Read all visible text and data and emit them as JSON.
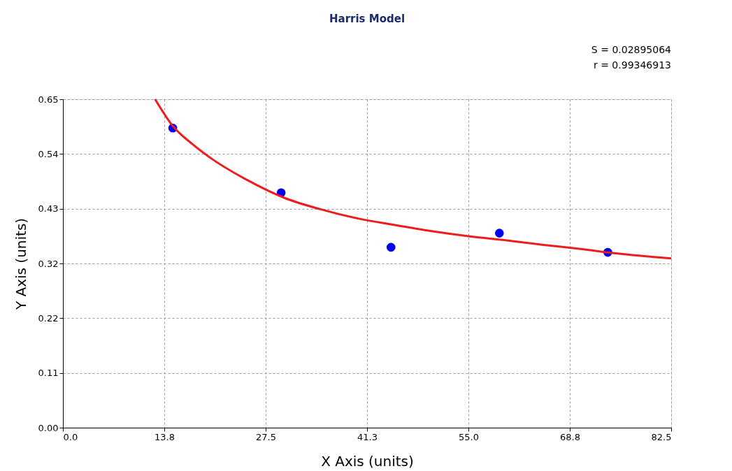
{
  "chart_data": {
    "type": "scatter",
    "title": "Harris Model",
    "xlabel": "X Axis (units)",
    "ylabel": "Y Axis (units)",
    "annotations": [
      "S = 0.02895064",
      "r = 0.99346913"
    ],
    "series": [
      {
        "color": "#0000ee",
        "marker": "circle",
        "x": [
          14.9,
          29.6,
          44.5,
          59.2,
          73.9
        ],
        "values": [
          0.593,
          0.465,
          0.357,
          0.385,
          0.347
        ]
      },
      {
        "type": "line",
        "color": "#ee1c1c",
        "line_style": "solid",
        "x": [
          12.5,
          14.9,
          17.5,
          20,
          25,
          30,
          35,
          40,
          45,
          50,
          55,
          60,
          65,
          70,
          75,
          82.5
        ],
        "values": [
          0.65,
          0.597,
          0.562,
          0.534,
          0.49,
          0.455,
          0.432,
          0.414,
          0.401,
          0.389,
          0.379,
          0.371,
          0.362,
          0.354,
          0.345,
          0.335
        ]
      }
    ],
    "xlim": [
      0,
      82.5
    ],
    "ylim": [
      0,
      0.65
    ],
    "xticks": [
      {
        "value": 0,
        "label": "0.0"
      },
      {
        "value": 13.75,
        "label": "13.8"
      },
      27.5,
      {
        "value": 41.25,
        "label": "41.3"
      },
      {
        "value": 55,
        "label": "55.0"
      },
      {
        "value": 68.75,
        "label": "68.8"
      },
      82.5
    ],
    "yticks": [
      {
        "value": 0,
        "label": "0.00"
      },
      {
        "value": 0.1083,
        "label": "0.11"
      },
      {
        "value": 0.2167,
        "label": "0.22"
      },
      {
        "value": 0.325,
        "label": "0.32"
      },
      {
        "value": 0.4333,
        "label": "0.43"
      },
      {
        "value": 0.5417,
        "label": "0.54"
      },
      0.65
    ],
    "grid": true
  }
}
